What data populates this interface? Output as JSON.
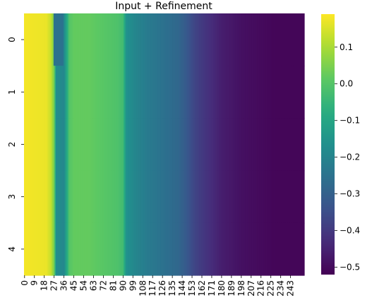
{
  "chart_data": {
    "type": "heatmap",
    "title": "Input + Refinement",
    "xlabel": "",
    "ylabel": "",
    "rows": 5,
    "columns": 256,
    "y_tick_labels": [
      "0",
      "1",
      "2",
      "3",
      "4"
    ],
    "x_tick_labels": [
      "0",
      "9",
      "18",
      "27",
      "36",
      "45",
      "54",
      "63",
      "72",
      "81",
      "90",
      "99",
      "108",
      "117",
      "126",
      "135",
      "144",
      "153",
      "162",
      "171",
      "180",
      "189",
      "198",
      "207",
      "216",
      "225",
      "234",
      "243"
    ],
    "x_tick_step": 9,
    "colormap": "viridis",
    "vmin": -0.52,
    "vmax": 0.19,
    "colorbar_ticks": [
      "0.1",
      "0.0",
      "−0.1",
      "−0.2",
      "−0.3",
      "−0.4",
      "−0.5"
    ],
    "colorbar_tick_values": [
      0.1,
      0.0,
      -0.1,
      -0.2,
      -0.3,
      -0.4,
      -0.5
    ],
    "value_profile": [
      {
        "col": 0,
        "value": 0.18
      },
      {
        "col": 20,
        "value": 0.17
      },
      {
        "col": 24,
        "value": 0.13
      },
      {
        "col": 27,
        "value": 0.04
      },
      {
        "col": 29,
        "value": -0.17
      },
      {
        "col": 36,
        "value": -0.19
      },
      {
        "col": 41,
        "value": 0.0
      },
      {
        "col": 45,
        "value": 0.02
      },
      {
        "col": 60,
        "value": 0.02
      },
      {
        "col": 85,
        "value": -0.01
      },
      {
        "col": 90,
        "value": -0.03
      },
      {
        "col": 93,
        "value": -0.16
      },
      {
        "col": 100,
        "value": -0.19
      },
      {
        "col": 110,
        "value": -0.22
      },
      {
        "col": 125,
        "value": -0.25
      },
      {
        "col": 140,
        "value": -0.28
      },
      {
        "col": 148,
        "value": -0.32
      },
      {
        "col": 155,
        "value": -0.37
      },
      {
        "col": 165,
        "value": -0.41
      },
      {
        "col": 180,
        "value": -0.46
      },
      {
        "col": 200,
        "value": -0.49
      },
      {
        "col": 230,
        "value": -0.51
      },
      {
        "col": 255,
        "value": -0.51
      }
    ],
    "row_variations": [
      {
        "row": 0,
        "col_start": 27,
        "col_end": 35,
        "value": -0.25
      }
    ]
  }
}
